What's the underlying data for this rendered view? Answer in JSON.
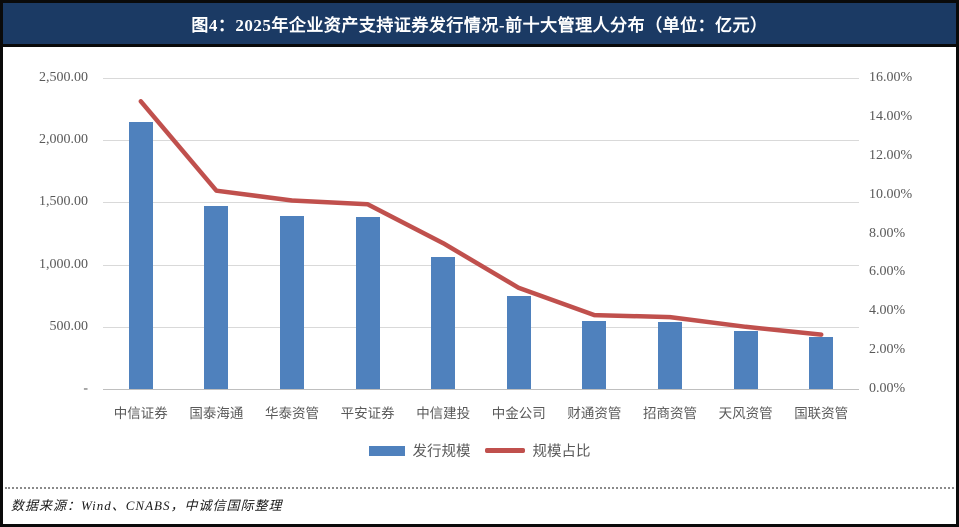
{
  "title": "图4：2025年企业资产支持证券发行情况-前十大管理人分布（单位：亿元）",
  "footer": "数据来源：Wind、CNABS，中诚信国际整理",
  "colors": {
    "title_bar_bg": "#1b3a64",
    "title_text": "#ffffff",
    "bar": "#4f81bd",
    "line": "#c0504d",
    "axis_text": "#595959",
    "gridline": "#d9d9d9",
    "frame_border": "#0a0a0a"
  },
  "chart_data": {
    "type": "bar",
    "title": "2025年企业资产支持证券发行情况-前十大管理人分布（单位：亿元）",
    "categories": [
      "中信证券",
      "国泰海通",
      "华泰资管",
      "平安证券",
      "中信建投",
      "中金公司",
      "财通资管",
      "招商资管",
      "天风资管",
      "国联资管"
    ],
    "series": [
      {
        "name": "发行规模",
        "type": "bar",
        "axis": "left",
        "values": [
          2150,
          1470,
          1390,
          1380,
          1060,
          750,
          545,
          540,
          465,
          420
        ]
      },
      {
        "name": "规模占比",
        "type": "line",
        "axis": "right",
        "values": [
          14.8,
          10.2,
          9.7,
          9.5,
          7.5,
          5.2,
          3.8,
          3.7,
          3.2,
          2.8
        ]
      }
    ],
    "left_axis": {
      "min": 0,
      "max": 2500,
      "tick_labels_top_to_bottom": [
        "2,500.00",
        "2,000.00",
        "1,500.00",
        "1,000.00",
        "500.00",
        "-"
      ]
    },
    "right_axis": {
      "min": 0,
      "max": 16,
      "tick_labels_top_to_bottom": [
        "16.00%",
        "14.00%",
        "12.00%",
        "10.00%",
        "8.00%",
        "6.00%",
        "4.00%",
        "2.00%",
        "0.00%"
      ]
    },
    "grid": true,
    "legend_position": "bottom"
  }
}
